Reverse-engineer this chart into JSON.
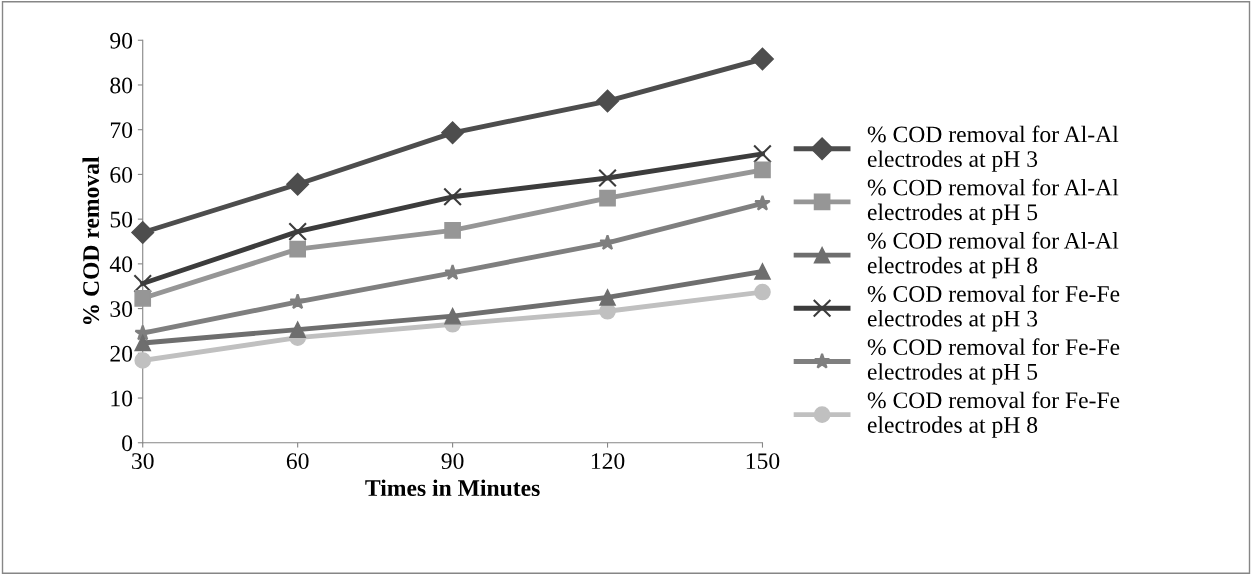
{
  "chart_data": {
    "type": "line",
    "xlabel": "Times in Minutes",
    "ylabel": "% COD removal",
    "x": [
      30,
      60,
      90,
      120,
      150
    ],
    "xlim": [
      30,
      150
    ],
    "xticks": [
      30,
      60,
      90,
      120,
      150
    ],
    "ylim": [
      0,
      90
    ],
    "yticks": [
      0,
      10,
      20,
      30,
      40,
      50,
      60,
      70,
      80,
      90
    ],
    "grid": false,
    "legend": "right",
    "line_style": "solid",
    "series": [
      {
        "name": "% COD removal for Al-Al electrodes at pH 3",
        "color": "#4d4d4d",
        "marker": "diamond",
        "values": [
          47,
          57.8,
          69.3,
          76.4,
          85.8
        ]
      },
      {
        "name": "% COD removal for Al-Al electrodes at pH 5",
        "color": "#969696",
        "marker": "square",
        "values": [
          32.3,
          43.3,
          47.5,
          54.7,
          61
        ]
      },
      {
        "name": "% COD removal for Al-Al electrodes at pH 8",
        "color": "#6e6e6e",
        "marker": "triangle",
        "values": [
          22.3,
          25.3,
          28.3,
          32.5,
          38.3
        ]
      },
      {
        "name": "% COD removal for Fe-Fe electrodes at pH 3",
        "color": "#3c3c3c",
        "marker": "cross",
        "values": [
          35.6,
          47.2,
          55,
          59.2,
          64.6
        ]
      },
      {
        "name": "% COD removal for Fe-Fe electrodes at pH 5",
        "color": "#7f7f7f",
        "marker": "star",
        "values": [
          24.5,
          31.5,
          38,
          44.7,
          53.5
        ]
      },
      {
        "name": "% COD removal for Fe-Fe electrodes at pH 8",
        "color": "#c0c0c0",
        "marker": "circle",
        "values": [
          18.4,
          23.5,
          26.5,
          29.4,
          33.7
        ]
      }
    ]
  }
}
